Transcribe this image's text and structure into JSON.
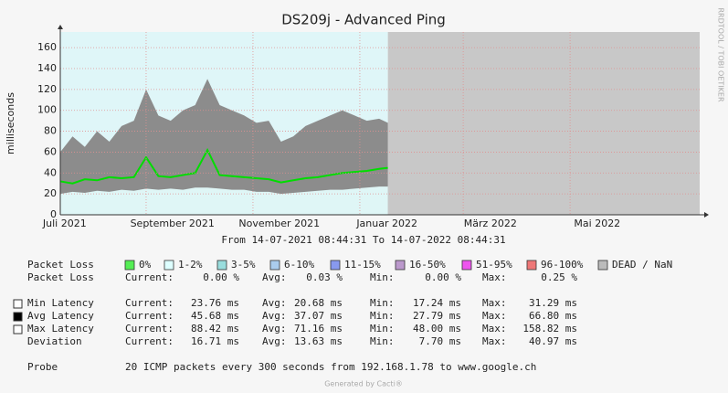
{
  "chart_data": {
    "type": "smokeping",
    "title": "DS209j - Advanced Ping",
    "y_label": "milliseconds",
    "date_range": "From 14-07-2021 08:44:31 To 14-07-2022 08:44:31",
    "xlim": [
      "2021-07-14",
      "2022-07-14"
    ],
    "xticks": [
      {
        "value": "2021-07",
        "label": "Juli 2021"
      },
      {
        "value": "2021-09",
        "label": "September 2021"
      },
      {
        "value": "2021-11",
        "label": "November 2021"
      },
      {
        "value": "2022-01",
        "label": "Januar 2022"
      },
      {
        "value": "2022-03",
        "label": "März 2022"
      },
      {
        "value": "2022-05",
        "label": "Mai 2022"
      }
    ],
    "ylim": [
      0,
      175
    ],
    "yticks": [
      0,
      20,
      40,
      60,
      80,
      100,
      120,
      140,
      160
    ],
    "grid": true,
    "x": [
      "2021-07-14",
      "2021-07-21",
      "2021-07-28",
      "2021-08-04",
      "2021-08-11",
      "2021-08-18",
      "2021-08-25",
      "2021-09-01",
      "2021-09-08",
      "2021-09-15",
      "2021-09-22",
      "2021-09-29",
      "2021-10-06",
      "2021-10-13",
      "2021-10-20",
      "2021-10-27",
      "2021-11-03",
      "2021-11-10",
      "2021-11-17",
      "2021-11-24",
      "2021-12-01",
      "2021-12-08",
      "2021-12-15",
      "2021-12-22",
      "2021-12-29",
      "2022-01-05",
      "2022-01-12",
      "2022-01-17"
    ],
    "series": [
      {
        "name": "Min Latency",
        "color": "#dff6f6",
        "values": [
          20,
          22,
          21,
          23,
          22,
          24,
          23,
          25,
          24,
          25,
          24,
          26,
          26,
          25,
          24,
          24,
          22,
          22,
          20,
          21,
          22,
          23,
          24,
          24,
          25,
          26,
          27,
          27
        ]
      },
      {
        "name": "Avg Latency",
        "color": "#00dd00",
        "values": [
          32,
          30,
          34,
          33,
          36,
          35,
          36,
          55,
          37,
          36,
          38,
          40,
          62,
          38,
          37,
          36,
          35,
          34,
          31,
          33,
          35,
          36,
          38,
          40,
          41,
          42,
          44,
          45
        ]
      },
      {
        "name": "Max Latency",
        "color": "#8c8c8c",
        "values": [
          60,
          75,
          65,
          80,
          70,
          85,
          90,
          120,
          95,
          90,
          100,
          105,
          130,
          105,
          100,
          95,
          88,
          90,
          70,
          75,
          85,
          90,
          95,
          100,
          95,
          90,
          92,
          88
        ]
      }
    ]
  },
  "legend": {
    "packet_loss_label": "Packet Loss",
    "loss_levels": [
      {
        "label": "0%",
        "color": "#55ee55"
      },
      {
        "label": "1-2%",
        "color": "#ddffff"
      },
      {
        "label": "3-5%",
        "color": "#99dddd"
      },
      {
        "label": "6-10%",
        "color": "#aaccee"
      },
      {
        "label": "11-15%",
        "color": "#8899ee"
      },
      {
        "label": "16-50%",
        "color": "#bb99cc"
      },
      {
        "label": "51-95%",
        "color": "#ee55ee"
      },
      {
        "label": "96-100%",
        "color": "#ee7777"
      },
      {
        "label": "DEAD / NaN",
        "color": "#bbbbbb"
      }
    ],
    "stat_labels": [
      "Current:",
      "Avg:",
      "Min:",
      "Max:"
    ],
    "packet_loss_stats": [
      "0.00 %",
      "0.03 %",
      "0.00 %",
      "0.25 %"
    ],
    "latency_stats": [
      [
        "23.76 ms",
        "20.68 ms",
        "17.24 ms",
        "31.29 ms"
      ],
      [
        "45.68 ms",
        "37.07 ms",
        "27.79 ms",
        "66.80 ms"
      ],
      [
        "88.42 ms",
        "71.16 ms",
        "48.00 ms",
        "158.82 ms"
      ]
    ],
    "deviation_label": "Deviation",
    "deviation_stats": [
      "16.71 ms",
      "13.63 ms",
      "7.70 ms",
      "40.97 ms"
    ],
    "probe_label": "Probe",
    "probe_text": "20 ICMP packets every 300 seconds from 192.168.1.78 to www.google.ch"
  },
  "generated_by": "Generated by Cacti®",
  "side_label": "RRDTOOL / TOBI OETIKER"
}
